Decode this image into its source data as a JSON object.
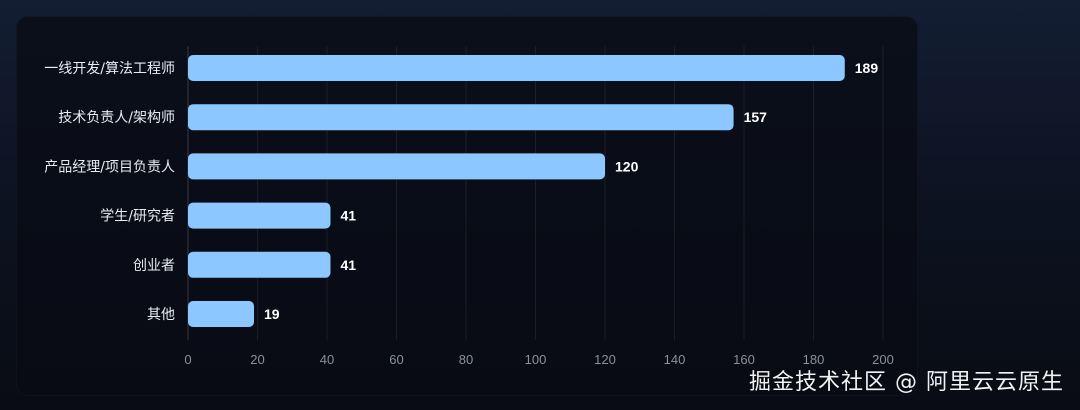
{
  "chart_data": {
    "type": "bar",
    "orientation": "horizontal",
    "categories": [
      "一线开发/算法工程师",
      "技术负责人/架构师",
      "产品经理/项目负责人",
      "学生/研究者",
      "创业者",
      "其他"
    ],
    "values": [
      189,
      157,
      120,
      41,
      41,
      19
    ],
    "xlim": [
      0,
      200
    ],
    "xticks": [
      0,
      20,
      40,
      60,
      80,
      100,
      120,
      140,
      160,
      180,
      200
    ],
    "grid": true,
    "bar_color": "#8cc8ff",
    "data_labels": true
  },
  "watermark": "掘金技术社区 @ 阿里云云原生"
}
